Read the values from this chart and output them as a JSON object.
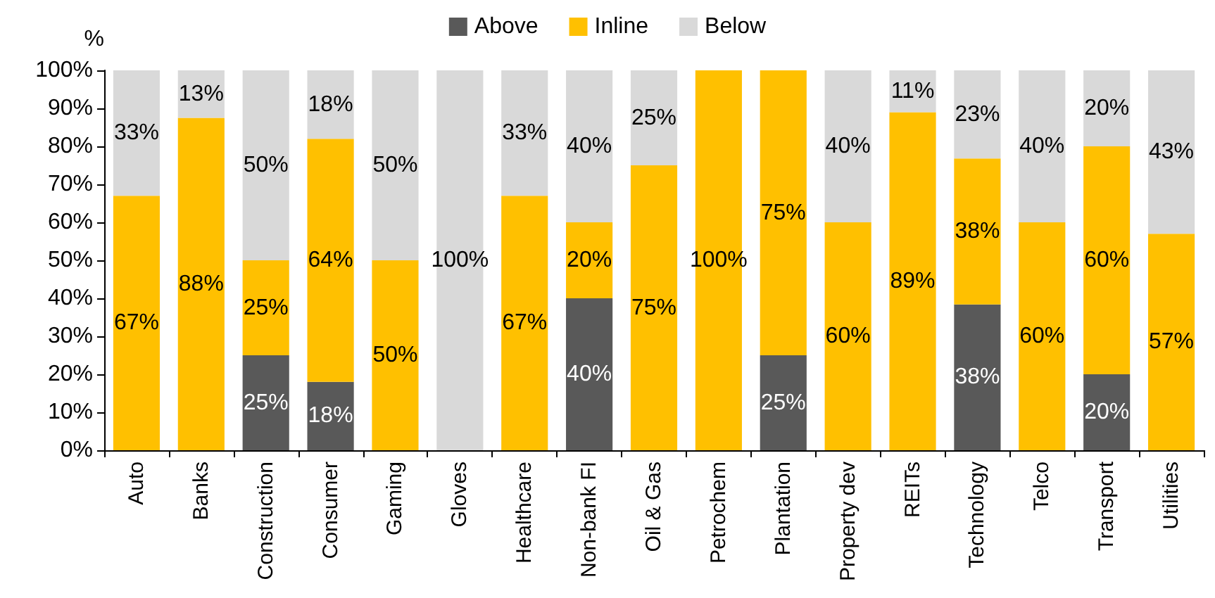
{
  "chart_data": {
    "type": "bar",
    "stacked": true,
    "ylabel": "%",
    "legend": "top",
    "grid": false,
    "categories": [
      "Auto",
      "Banks",
      "Construction",
      "Consumer",
      "Gaming",
      "Gloves",
      "Healthcare",
      "Non-bank FI",
      "Oil & Gas",
      "Petrochem",
      "Plantation",
      "Property dev",
      "REITs",
      "Technology",
      "Telco",
      "Transport",
      "Utilities"
    ],
    "ylim": [
      0,
      100
    ],
    "yticks": [
      {
        "value": 0,
        "label": "0%"
      },
      {
        "value": 10,
        "label": "10%"
      },
      {
        "value": 20,
        "label": "20%"
      },
      {
        "value": 30,
        "label": "30%"
      },
      {
        "value": 40,
        "label": "40%"
      },
      {
        "value": 50,
        "label": "50%"
      },
      {
        "value": 60,
        "label": "60%"
      },
      {
        "value": 70,
        "label": "70%"
      },
      {
        "value": 80,
        "label": "80%"
      },
      {
        "value": 90,
        "label": "90%"
      },
      {
        "value": 100,
        "label": "100%"
      }
    ],
    "series": [
      {
        "name": "Above",
        "color": "#595959",
        "values": [
          0,
          0,
          25,
          18,
          0,
          0,
          0,
          40,
          0,
          0,
          25,
          0,
          0,
          38.4,
          0,
          20,
          0
        ],
        "value_labels": [
          null,
          null,
          "25%",
          "18%",
          null,
          null,
          null,
          "40%",
          null,
          null,
          "25%",
          null,
          null,
          "38%",
          null,
          "20%",
          null
        ]
      },
      {
        "name": "Inline",
        "color": "#ffc000",
        "values": [
          67,
          87.5,
          25,
          64,
          50,
          0,
          67,
          20,
          75,
          100,
          75,
          60,
          89,
          38.4,
          60,
          60,
          57
        ],
        "value_labels": [
          "67%",
          "88%",
          "25%",
          "64%",
          "50%",
          null,
          "67%",
          "20%",
          "75%",
          "100%",
          "75%",
          "60%",
          "89%",
          "38%",
          "60%",
          "60%",
          "57%"
        ]
      },
      {
        "name": "Below",
        "color": "#d9d9d9",
        "values": [
          33,
          12.5,
          50,
          18,
          50,
          100,
          33,
          40,
          25,
          0,
          0,
          40,
          11,
          23.2,
          40,
          20,
          43
        ],
        "value_labels": [
          "33%",
          "13%",
          "50%",
          "18%",
          "50%",
          "100%",
          "33%",
          "40%",
          "25%",
          null,
          null,
          "40%",
          "11%",
          "23%",
          "40%",
          "20%",
          "43%"
        ]
      }
    ]
  }
}
